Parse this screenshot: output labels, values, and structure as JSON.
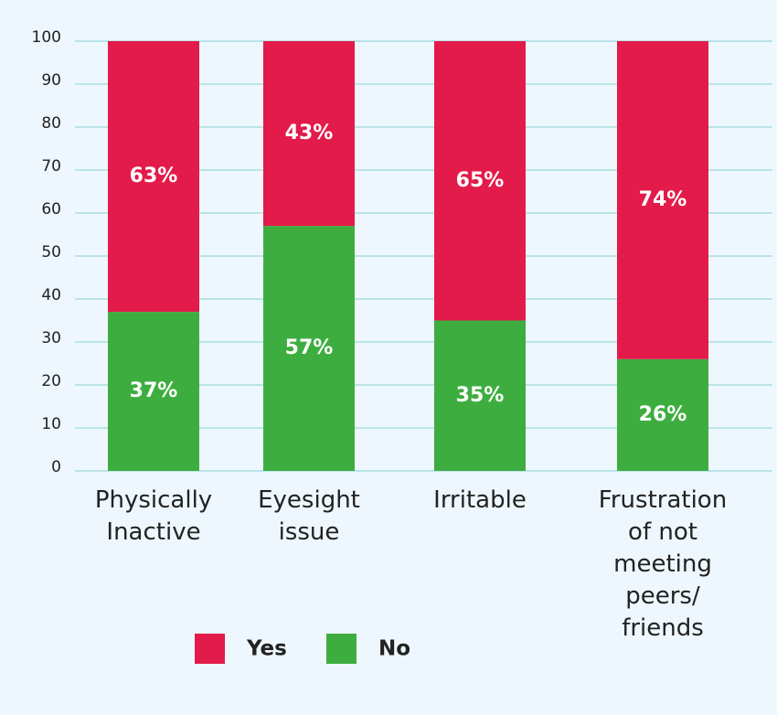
{
  "chart_data": {
    "type": "stacked_bar",
    "categories": [
      "Physically Inactive",
      "Eyesight issue",
      "Irritable",
      "Frustration of not meeting peers/ friends"
    ],
    "series": [
      {
        "name": "Yes",
        "color": "#e31b4b",
        "values": [
          63,
          43,
          65,
          74
        ],
        "value_labels": [
          "63%",
          "43%",
          "65%",
          "74%"
        ]
      },
      {
        "name": "No",
        "color": "#3ead3f",
        "values": [
          37,
          57,
          35,
          26
        ],
        "value_labels": [
          "37%",
          "57%",
          "35%",
          "26%"
        ]
      }
    ],
    "ylim": [
      0,
      100
    ],
    "yticks": [
      0,
      10,
      20,
      30,
      40,
      50,
      60,
      70,
      80,
      90,
      100
    ],
    "grid": true
  }
}
